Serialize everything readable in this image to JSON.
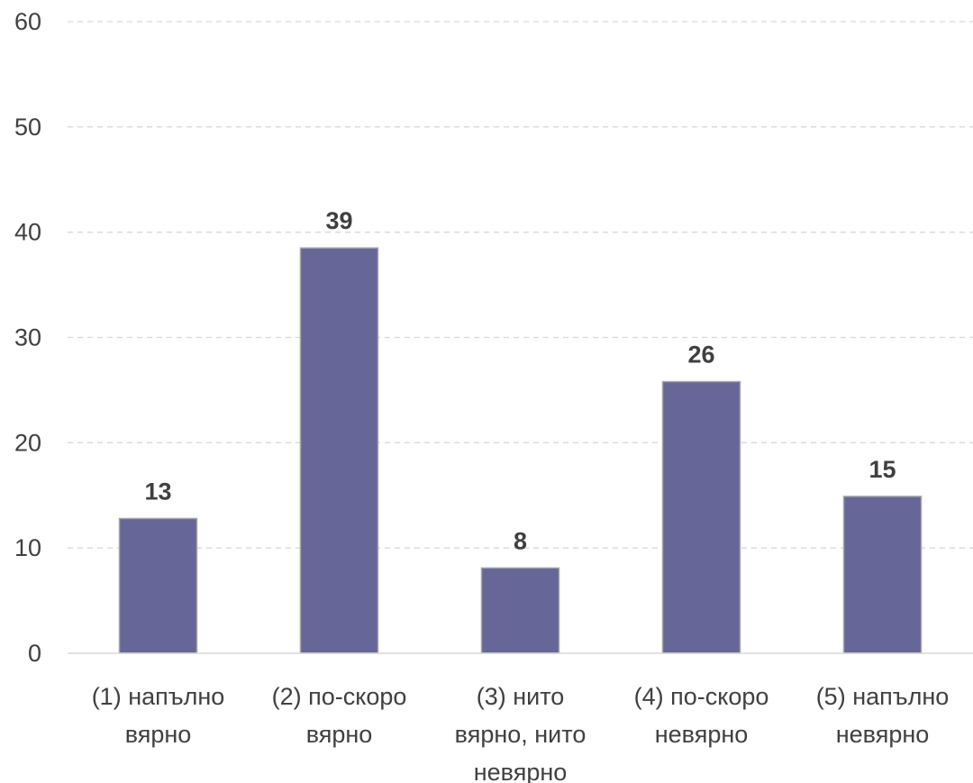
{
  "chart_data": {
    "type": "bar",
    "categories": [
      [
        "(1) напълно",
        "вярно"
      ],
      [
        "(2) по-скоро",
        "вярно"
      ],
      [
        "(3) нито",
        "вярно, нито",
        "невярно"
      ],
      [
        "(4) по-скоро",
        "невярно"
      ],
      [
        "(5) напълно",
        "невярно"
      ]
    ],
    "values": [
      12.8,
      38.5,
      8.1,
      25.8,
      14.9
    ],
    "data_labels": [
      "13",
      "39",
      "8",
      "26",
      "15"
    ],
    "ylim": [
      0,
      60
    ],
    "yticks": [
      "0",
      "10",
      "20",
      "30",
      "40",
      "50",
      "60"
    ],
    "grid": true,
    "bar_color": "#666699"
  }
}
